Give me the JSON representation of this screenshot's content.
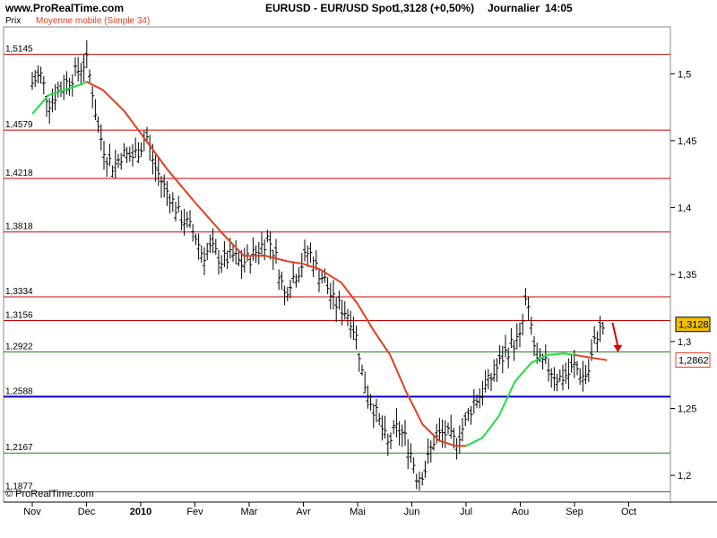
{
  "header": {
    "site": "www.ProRealTime.com",
    "title": "EURUSD - EUR/USD Spot",
    "price": "1,3128 (+0,50%)",
    "period": "Journalier",
    "time": "14:05"
  },
  "sub": {
    "prix": "Prix",
    "ma": "Moyenne mobile (Simple 34)"
  },
  "copyright": "© ProRealTime.com",
  "colors": {
    "ma_red": "#e04020",
    "ma_green": "#22dd44",
    "price_box": "#f0c000",
    "ma_box_border": "#e04020"
  },
  "chart_data": {
    "type": "line",
    "title": "EURUSD - EUR/USD Spot",
    "ylim": [
      1.18,
      1.535
    ],
    "x_ticks": [
      {
        "label": "Nov",
        "pos": 0.0
      },
      {
        "label": "Dec",
        "pos": 1.0
      },
      {
        "label": "2010",
        "pos": 2.0,
        "bold": true
      },
      {
        "label": "Fev",
        "pos": 3.0
      },
      {
        "label": "Mar",
        "pos": 4.0
      },
      {
        "label": "Avr",
        "pos": 5.0
      },
      {
        "label": "Mai",
        "pos": 6.0
      },
      {
        "label": "Jun",
        "pos": 7.0
      },
      {
        "label": "Jul",
        "pos": 8.0
      },
      {
        "label": "Aou",
        "pos": 9.0
      },
      {
        "label": "Sep",
        "pos": 10.0
      },
      {
        "label": "Oct",
        "pos": 11.0
      }
    ],
    "y_ticks": [
      "1,2",
      "1,25",
      "1,3",
      "1,35",
      "1,4",
      "1,45",
      "1,5"
    ],
    "y_tick_values": [
      1.2,
      1.25,
      1.3,
      1.35,
      1.4,
      1.45,
      1.5
    ],
    "levels": [
      {
        "label": "1,5145",
        "value": 1.5145,
        "color": "#cc0000",
        "width": 1
      },
      {
        "label": "1,4579",
        "value": 1.4579,
        "color": "#cc0000",
        "width": 1
      },
      {
        "label": "1,4218",
        "value": 1.4218,
        "color": "#cc0000",
        "width": 1
      },
      {
        "label": "1,3818",
        "value": 1.3818,
        "color": "#cc0000",
        "width": 1
      },
      {
        "label": "1,3334",
        "value": 1.3334,
        "color": "#cc0000",
        "width": 1
      },
      {
        "label": "1,3156",
        "value": 1.3156,
        "color": "#cc0000",
        "width": 1
      },
      {
        "label": "1,2922",
        "value": 1.2922,
        "color": "#228822",
        "width": 1
      },
      {
        "label": "1,2588",
        "value": 1.2588,
        "color": "#0000cc",
        "width": 2
      },
      {
        "label": "1,2167",
        "value": 1.2167,
        "color": "#228822",
        "width": 1
      },
      {
        "label": "1,1877",
        "value": 1.1877,
        "color": "#228822",
        "width": 1
      }
    ],
    "price_series": [
      [
        0.0,
        1.493
      ],
      [
        0.15,
        1.5
      ],
      [
        0.3,
        1.478
      ],
      [
        0.5,
        1.488
      ],
      [
        0.7,
        1.496
      ],
      [
        0.9,
        1.505
      ],
      [
        1.0,
        1.51
      ],
      [
        1.1,
        1.49
      ],
      [
        1.2,
        1.462
      ],
      [
        1.35,
        1.44
      ],
      [
        1.5,
        1.43
      ],
      [
        1.65,
        1.44
      ],
      [
        1.85,
        1.438
      ],
      [
        2.0,
        1.445
      ],
      [
        2.1,
        1.455
      ],
      [
        2.25,
        1.432
      ],
      [
        2.4,
        1.418
      ],
      [
        2.55,
        1.408
      ],
      [
        2.7,
        1.395
      ],
      [
        2.85,
        1.388
      ],
      [
        3.0,
        1.38
      ],
      [
        3.15,
        1.364
      ],
      [
        3.3,
        1.37
      ],
      [
        3.5,
        1.36
      ],
      [
        3.7,
        1.364
      ],
      [
        3.85,
        1.358
      ],
      [
        4.0,
        1.362
      ],
      [
        4.2,
        1.37
      ],
      [
        4.35,
        1.378
      ],
      [
        4.5,
        1.362
      ],
      [
        4.65,
        1.335
      ],
      [
        4.75,
        1.345
      ],
      [
        4.9,
        1.352
      ],
      [
        5.0,
        1.36
      ],
      [
        5.1,
        1.368
      ],
      [
        5.25,
        1.354
      ],
      [
        5.4,
        1.345
      ],
      [
        5.55,
        1.33
      ],
      [
        5.7,
        1.325
      ],
      [
        5.85,
        1.32
      ],
      [
        6.0,
        1.3
      ],
      [
        6.1,
        1.272
      ],
      [
        6.25,
        1.255
      ],
      [
        6.45,
        1.235
      ],
      [
        6.55,
        1.222
      ],
      [
        6.7,
        1.235
      ],
      [
        6.85,
        1.23
      ],
      [
        7.0,
        1.215
      ],
      [
        7.1,
        1.198
      ],
      [
        7.25,
        1.205
      ],
      [
        7.4,
        1.226
      ],
      [
        7.6,
        1.232
      ],
      [
        7.8,
        1.225
      ],
      [
        8.0,
        1.24
      ],
      [
        8.15,
        1.256
      ],
      [
        8.3,
        1.262
      ],
      [
        8.5,
        1.275
      ],
      [
        8.7,
        1.29
      ],
      [
        8.85,
        1.298
      ],
      [
        9.0,
        1.302
      ],
      [
        9.1,
        1.33
      ],
      [
        9.2,
        1.312
      ],
      [
        9.3,
        1.285
      ],
      [
        9.5,
        1.282
      ],
      [
        9.7,
        1.272
      ],
      [
        9.9,
        1.276
      ],
      [
        10.0,
        1.282
      ],
      [
        10.15,
        1.274
      ],
      [
        10.25,
        1.276
      ],
      [
        10.4,
        1.305
      ],
      [
        10.55,
        1.312
      ]
    ],
    "ma_series": [
      {
        "color": "#22dd44",
        "points": [
          [
            0.0,
            1.47
          ],
          [
            0.3,
            1.484
          ],
          [
            0.6,
            1.488
          ],
          [
            0.9,
            1.492
          ],
          [
            1.0,
            1.494
          ]
        ]
      },
      {
        "color": "#e04020",
        "points": [
          [
            1.0,
            1.494
          ],
          [
            1.3,
            1.488
          ],
          [
            1.7,
            1.472
          ],
          [
            2.1,
            1.45
          ],
          [
            2.5,
            1.428
          ],
          [
            3.0,
            1.404
          ],
          [
            3.5,
            1.381
          ],
          [
            3.9,
            1.364
          ],
          [
            4.3,
            1.364
          ],
          [
            4.7,
            1.36
          ],
          [
            5.0,
            1.358
          ],
          [
            5.3,
            1.354
          ],
          [
            5.7,
            1.344
          ],
          [
            6.0,
            1.328
          ],
          [
            6.3,
            1.308
          ],
          [
            6.6,
            1.29
          ],
          [
            6.9,
            1.262
          ],
          [
            7.2,
            1.238
          ],
          [
            7.5,
            1.226
          ],
          [
            7.8,
            1.222
          ],
          [
            8.0,
            1.222
          ]
        ]
      },
      {
        "color": "#22dd44",
        "points": [
          [
            8.0,
            1.222
          ],
          [
            8.3,
            1.228
          ],
          [
            8.6,
            1.244
          ],
          [
            8.9,
            1.27
          ],
          [
            9.2,
            1.284
          ],
          [
            9.5,
            1.29
          ],
          [
            9.8,
            1.291
          ],
          [
            10.0,
            1.29
          ]
        ]
      },
      {
        "color": "#e04020",
        "points": [
          [
            10.0,
            1.29
          ],
          [
            10.3,
            1.288
          ],
          [
            10.6,
            1.286
          ]
        ]
      }
    ],
    "last_price": {
      "label": "1,3128",
      "value": 1.3128
    },
    "last_ma": {
      "label": "1,2862",
      "value": 1.2862
    },
    "arrow": {
      "from": [
        10.7,
        1.314
      ],
      "to": [
        10.8,
        1.292
      ],
      "color": "#dd0000"
    }
  }
}
